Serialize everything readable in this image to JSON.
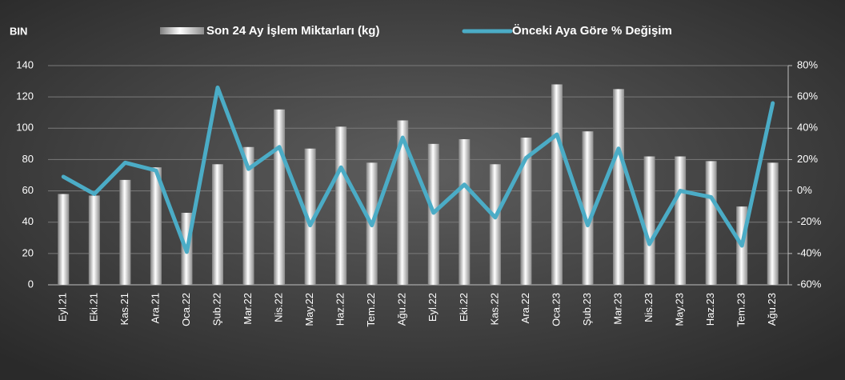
{
  "chart_data": {
    "type": "combo",
    "y_label": "BIN",
    "categories": [
      "Eyl.21",
      "Eki.21",
      "Kas.21",
      "Ara.21",
      "Oca.22",
      "Şub.22",
      "Mar.22",
      "Nis.22",
      "May.22",
      "Haz.22",
      "Tem.22",
      "Ağu.22",
      "Eyl.22",
      "Eki.22",
      "Kas.22",
      "Ara.22",
      "Oca.23",
      "Şub.23",
      "Mar.23",
      "Nis.23",
      "May.23",
      "Haz.23",
      "Tem.23",
      "Ağu.23"
    ],
    "series": [
      {
        "name": "Son 24 Ay İşlem Miktarları (kg)",
        "type": "bar",
        "color": "#d9d9d9",
        "axis": "y",
        "values": [
          58,
          57,
          67,
          75,
          46,
          77,
          88,
          112,
          87,
          101,
          78,
          105,
          90,
          93,
          77,
          94,
          128,
          98,
          125,
          82,
          82,
          79,
          50,
          78
        ]
      },
      {
        "name": "Önceki Aya Göre % Değişim",
        "type": "line",
        "color": "#4bacc6",
        "axis": "y2",
        "values": [
          9,
          -2,
          18,
          13,
          -39,
          66,
          14,
          28,
          -22,
          15,
          -22,
          34,
          -14,
          4,
          -17,
          21,
          36,
          -22,
          27,
          -34,
          0,
          -4,
          -35,
          56
        ]
      }
    ],
    "ylim": [
      0,
      140
    ],
    "yticks": [
      0,
      20,
      40,
      60,
      80,
      100,
      120,
      140
    ],
    "y2lim": [
      -60,
      80
    ],
    "y2ticks": [
      {
        "value": -60,
        "label": "-60%"
      },
      {
        "value": -40,
        "label": "-40%"
      },
      {
        "value": -20,
        "label": "-20%"
      },
      {
        "value": 0,
        "label": "0%"
      },
      {
        "value": 20,
        "label": "20%"
      },
      {
        "value": 40,
        "label": "40%"
      },
      {
        "value": 60,
        "label": "60%"
      },
      {
        "value": 80,
        "label": "80%"
      }
    ],
    "grid": true
  }
}
